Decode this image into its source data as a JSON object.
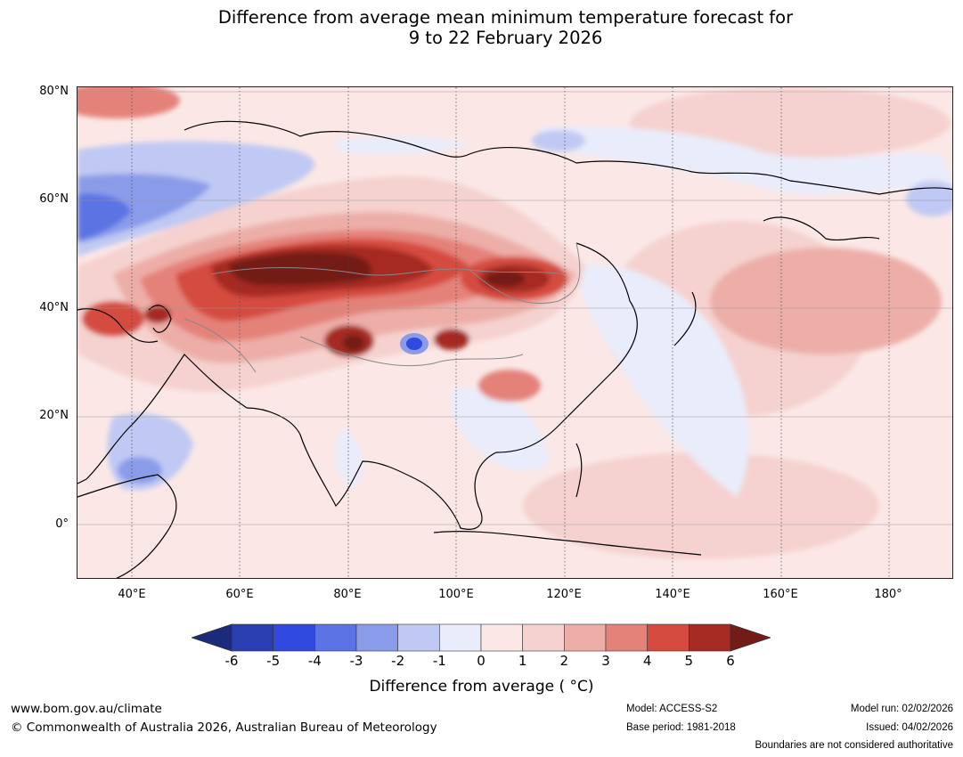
{
  "title_line1": "Difference from average mean minimum temperature forecast for",
  "title_line2": "9 to 22 February 2026",
  "map": {
    "projection": "equirectangular",
    "lon_range": [
      30,
      192
    ],
    "lat_range": [
      -10,
      81
    ],
    "gridlines": "dotted",
    "lat_labels": [
      "80°N",
      "60°N",
      "40°N",
      "20°N",
      "0°"
    ],
    "lon_labels": [
      "40°E",
      "60°E",
      "80°E",
      "100°E",
      "120°E",
      "140°E",
      "160°E",
      "180°"
    ],
    "anomaly_regions": [
      {
        "region": "Central Asia / Kazakhstan / Mongolia band",
        "anomaly_C": "5 to 6+"
      },
      {
        "region": "Northern China / Inner Mongolia",
        "anomaly_C": "4 to 6"
      },
      {
        "region": "Tibetan Plateau east",
        "anomaly_C": "4 to 6"
      },
      {
        "region": "Western Siberia / Northern Russia",
        "anomaly_C": "-1 to -4"
      },
      {
        "region": "Horn of Africa / Ethiopia",
        "anomaly_C": "-1 to -3"
      },
      {
        "region": "Southern Tibet pocket",
        "anomaly_C": "-1 to -4"
      },
      {
        "region": "North Pacific near 40°N 165°E",
        "anomaly_C": "2 to 3"
      },
      {
        "region": "Tropics / Indian Ocean",
        "anomaly_C": "0 to 1"
      }
    ]
  },
  "colorbar": {
    "ticks": [
      "-6",
      "-5",
      "-4",
      "-3",
      "-2",
      "-1",
      "0",
      "1",
      "2",
      "3",
      "4",
      "5",
      "6"
    ],
    "colors": [
      "#1b2a7a",
      "#2a3db1",
      "#3049de",
      "#5b73e4",
      "#8a9be9",
      "#c0c9f3",
      "#e9ecfa",
      "#fbe8e6",
      "#f5d2cf",
      "#edaea8",
      "#e4827a",
      "#d54b40",
      "#a62b23",
      "#731c17"
    ],
    "label": "Difference from average ( °C)"
  },
  "footer": {
    "website": "www.bom.gov.au/climate",
    "copyright": "© Commonwealth of Australia 2026, Australian Bureau of Meteorology",
    "model": "Model: ACCESS-S2",
    "base_period": "Base period: 1981-2018",
    "model_run": "Model run: 02/02/2026",
    "issued": "Issued: 04/02/2026",
    "disclaimer": "Boundaries are not considered authoritative"
  }
}
